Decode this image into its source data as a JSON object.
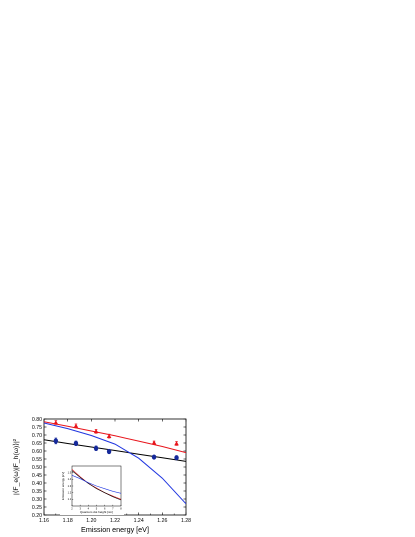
{
  "chart_data": [
    {
      "type": "scatter",
      "xlabel": "Emission energy [eV]",
      "ylabel": "|⟨F_e(ω)|F_h(ω)⟩|²",
      "xlim": [
        1.16,
        1.28
      ],
      "ylim": [
        0.2,
        0.8
      ],
      "xticks": [
        "1.16",
        "1.18",
        "1.20",
        "1.22",
        "1.24",
        "1.26",
        "1.28"
      ],
      "yticks": [
        "0.20",
        "0.25",
        "0.30",
        "0.35",
        "0.40",
        "0.45",
        "0.50",
        "0.55",
        "0.60",
        "0.65",
        "0.70",
        "0.75",
        "0.80"
      ],
      "grid": false,
      "series": [
        {
          "marker": "triangle",
          "color": "#e8141b",
          "points": [
            [
              1.17,
              0.778
            ],
            [
              1.187,
              0.757
            ],
            [
              1.204,
              0.723
            ],
            [
              1.215,
              0.693
            ],
            [
              1.253,
              0.652
            ],
            [
              1.272,
              0.647
            ]
          ],
          "error_bars": [
            0.012,
            0.012,
            0.012,
            0.012,
            0.01,
            0.012
          ]
        },
        {
          "marker": "circle",
          "color": "#15299a",
          "points": [
            [
              1.17,
              0.663
            ],
            [
              1.187,
              0.648
            ],
            [
              1.204,
              0.617
            ],
            [
              1.215,
              0.597
            ],
            [
              1.253,
              0.562
            ],
            [
              1.272,
              0.558
            ]
          ],
          "error_bars": [
            0.018,
            0.014,
            0.014,
            0.012,
            0.01,
            0.012
          ]
        },
        {
          "type": "line",
          "color": "#e8141b",
          "points": [
            [
              1.16,
              0.783
            ],
            [
              1.18,
              0.755
            ],
            [
              1.2,
              0.725
            ],
            [
              1.22,
              0.695
            ],
            [
              1.24,
              0.662
            ],
            [
              1.26,
              0.628
            ],
            [
              1.28,
              0.59
            ]
          ]
        },
        {
          "type": "line",
          "color": "#000000",
          "points": [
            [
              1.16,
              0.67
            ],
            [
              1.18,
              0.647
            ],
            [
              1.2,
              0.625
            ],
            [
              1.22,
              0.603
            ],
            [
              1.24,
              0.58
            ],
            [
              1.26,
              0.558
            ],
            [
              1.28,
              0.535
            ]
          ]
        },
        {
          "type": "line",
          "color": "#1f35e0",
          "points": [
            [
              1.16,
              0.775
            ],
            [
              1.18,
              0.74
            ],
            [
              1.2,
              0.697
            ],
            [
              1.22,
              0.643
            ],
            [
              1.24,
              0.555
            ],
            [
              1.26,
              0.43
            ],
            [
              1.28,
              0.27
            ]
          ]
        }
      ]
    },
    {
      "type": "line",
      "inset": true,
      "xlabel": "Quantum dot height [nm]",
      "ylabel": "Emission energy [eV]",
      "xlim": [
        2,
        8
      ],
      "ylim": [
        1.0,
        1.6
      ],
      "xticks": [
        "2",
        "3",
        "4",
        "5",
        "6",
        "7",
        "8"
      ],
      "yticks": [
        "1.1",
        "1.2",
        "1.3",
        "1.4",
        "1.5"
      ],
      "series": [
        {
          "color": "#e8141b",
          "points": [
            [
              2,
              1.55
            ],
            [
              3,
              1.44
            ],
            [
              4,
              1.34
            ],
            [
              5,
              1.27
            ],
            [
              6,
              1.2
            ],
            [
              7,
              1.15
            ],
            [
              8,
              1.1
            ]
          ]
        },
        {
          "color": "#000000",
          "points": [
            [
              2,
              1.53
            ],
            [
              3,
              1.43
            ],
            [
              4,
              1.34
            ],
            [
              5,
              1.26
            ],
            [
              6,
              1.2
            ],
            [
              7,
              1.14
            ],
            [
              8,
              1.09
            ]
          ]
        },
        {
          "color": "#1f35e0",
          "points": [
            [
              2,
              1.46
            ],
            [
              3,
              1.41
            ],
            [
              4,
              1.35
            ],
            [
              5,
              1.3
            ],
            [
              6,
              1.26
            ],
            [
              7,
              1.22
            ],
            [
              8,
              1.19
            ]
          ]
        }
      ]
    }
  ]
}
